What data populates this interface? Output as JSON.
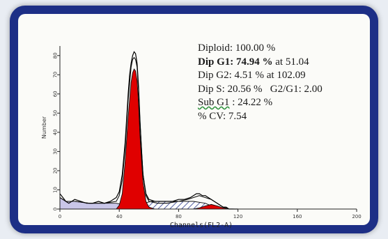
{
  "chart_data": {
    "type": "area",
    "xlabel": "Channels(FL2-A)",
    "ylabel": "Number",
    "xlim": [
      0,
      200
    ],
    "ylim": [
      0,
      85
    ],
    "x_ticks": [
      0,
      40,
      80,
      120,
      160,
      200
    ],
    "x_tick_labels": [
      "0",
      "40",
      "80",
      "120",
      "160",
      "200"
    ],
    "y_ticks": [
      0,
      10,
      20,
      30,
      40,
      50,
      60,
      70,
      80
    ],
    "y_tick_labels": [
      "0",
      "10",
      "20",
      "30",
      "40",
      "50",
      "60",
      "70",
      "80"
    ],
    "grid": false,
    "histogram": {
      "x": [
        0,
        2,
        4,
        6,
        8,
        10,
        14,
        18,
        22,
        26,
        30,
        34,
        38,
        40,
        42,
        44,
        46,
        47,
        48,
        49,
        50,
        51,
        52,
        53,
        54,
        55,
        56,
        58,
        60,
        64,
        68,
        72,
        76,
        80,
        84,
        88,
        90,
        92,
        94,
        96,
        98,
        100,
        102,
        104,
        106,
        108,
        110,
        112,
        114,
        116,
        118,
        120
      ],
      "y": [
        8,
        6,
        4,
        3,
        4,
        5,
        4,
        3,
        3,
        4,
        3,
        4,
        6,
        9,
        18,
        35,
        60,
        70,
        76,
        80,
        82,
        81,
        76,
        64,
        46,
        30,
        18,
        8,
        5,
        4,
        4,
        4,
        4,
        5,
        5,
        6,
        7,
        8,
        8,
        7,
        7,
        6,
        5,
        4,
        3,
        2,
        1,
        1,
        0,
        0,
        0,
        0
      ]
    },
    "fit_envelope": {
      "x": [
        0,
        4,
        10,
        20,
        30,
        38,
        40,
        42,
        44,
        46,
        48,
        49,
        50,
        51,
        52,
        53,
        54,
        56,
        58,
        60,
        66,
        72,
        80,
        86,
        90,
        94,
        98,
        102,
        106,
        110,
        114,
        118,
        120
      ],
      "y": [
        6,
        4,
        4,
        3,
        3,
        4,
        7,
        15,
        32,
        57,
        74,
        78,
        79,
        78,
        74,
        62,
        45,
        18,
        7,
        4,
        3,
        3,
        4,
        5,
        6,
        7,
        6,
        5,
        3,
        1,
        0,
        0,
        0
      ]
    },
    "series": [
      {
        "name": "Dip G1",
        "color": "#e00000",
        "x": [
          38,
          40,
          42,
          44,
          46,
          48,
          49,
          50,
          51,
          52,
          53,
          54,
          56,
          58,
          60,
          64
        ],
        "y": [
          0,
          2,
          8,
          25,
          48,
          66,
          71,
          73,
          72,
          67,
          55,
          38,
          14,
          4,
          1,
          0
        ]
      },
      {
        "name": "Dip G2",
        "color": "#e00000",
        "x": [
          90,
          94,
          98,
          102,
          106,
          110,
          114,
          118
        ],
        "y": [
          0,
          0.6,
          1.6,
          2.4,
          1.6,
          0.6,
          0.1,
          0
        ]
      },
      {
        "name": "Dip S",
        "color": "#ffffff",
        "hatch": "#2c3a8c",
        "x": [
          50,
          56,
          62,
          70,
          80,
          90,
          98,
          104,
          108
        ],
        "y": [
          0,
          3,
          4,
          4,
          4,
          4,
          3,
          1,
          0
        ]
      },
      {
        "name": "Sub G1",
        "color": "#c9c6e8",
        "x": [
          0,
          4,
          10,
          20,
          30,
          38,
          44,
          48,
          50
        ],
        "y": [
          6,
          4,
          4,
          3,
          3,
          3,
          2,
          1,
          0
        ]
      }
    ],
    "annotations": {
      "diploid": "Diploid: 100.00 %",
      "g1_label": "Dip G1: 74.94 %",
      "g1_at": " at 51.04",
      "g2": "Dip G2: 4.51 % at 102.09",
      "s_pct": "Dip S: 20.56 %",
      "g2g1": "G2/G1: 2.00",
      "subg1_label": "Sub G1",
      "subg1_value": " : 24.22 %",
      "cv": "% CV: 7.54"
    }
  }
}
